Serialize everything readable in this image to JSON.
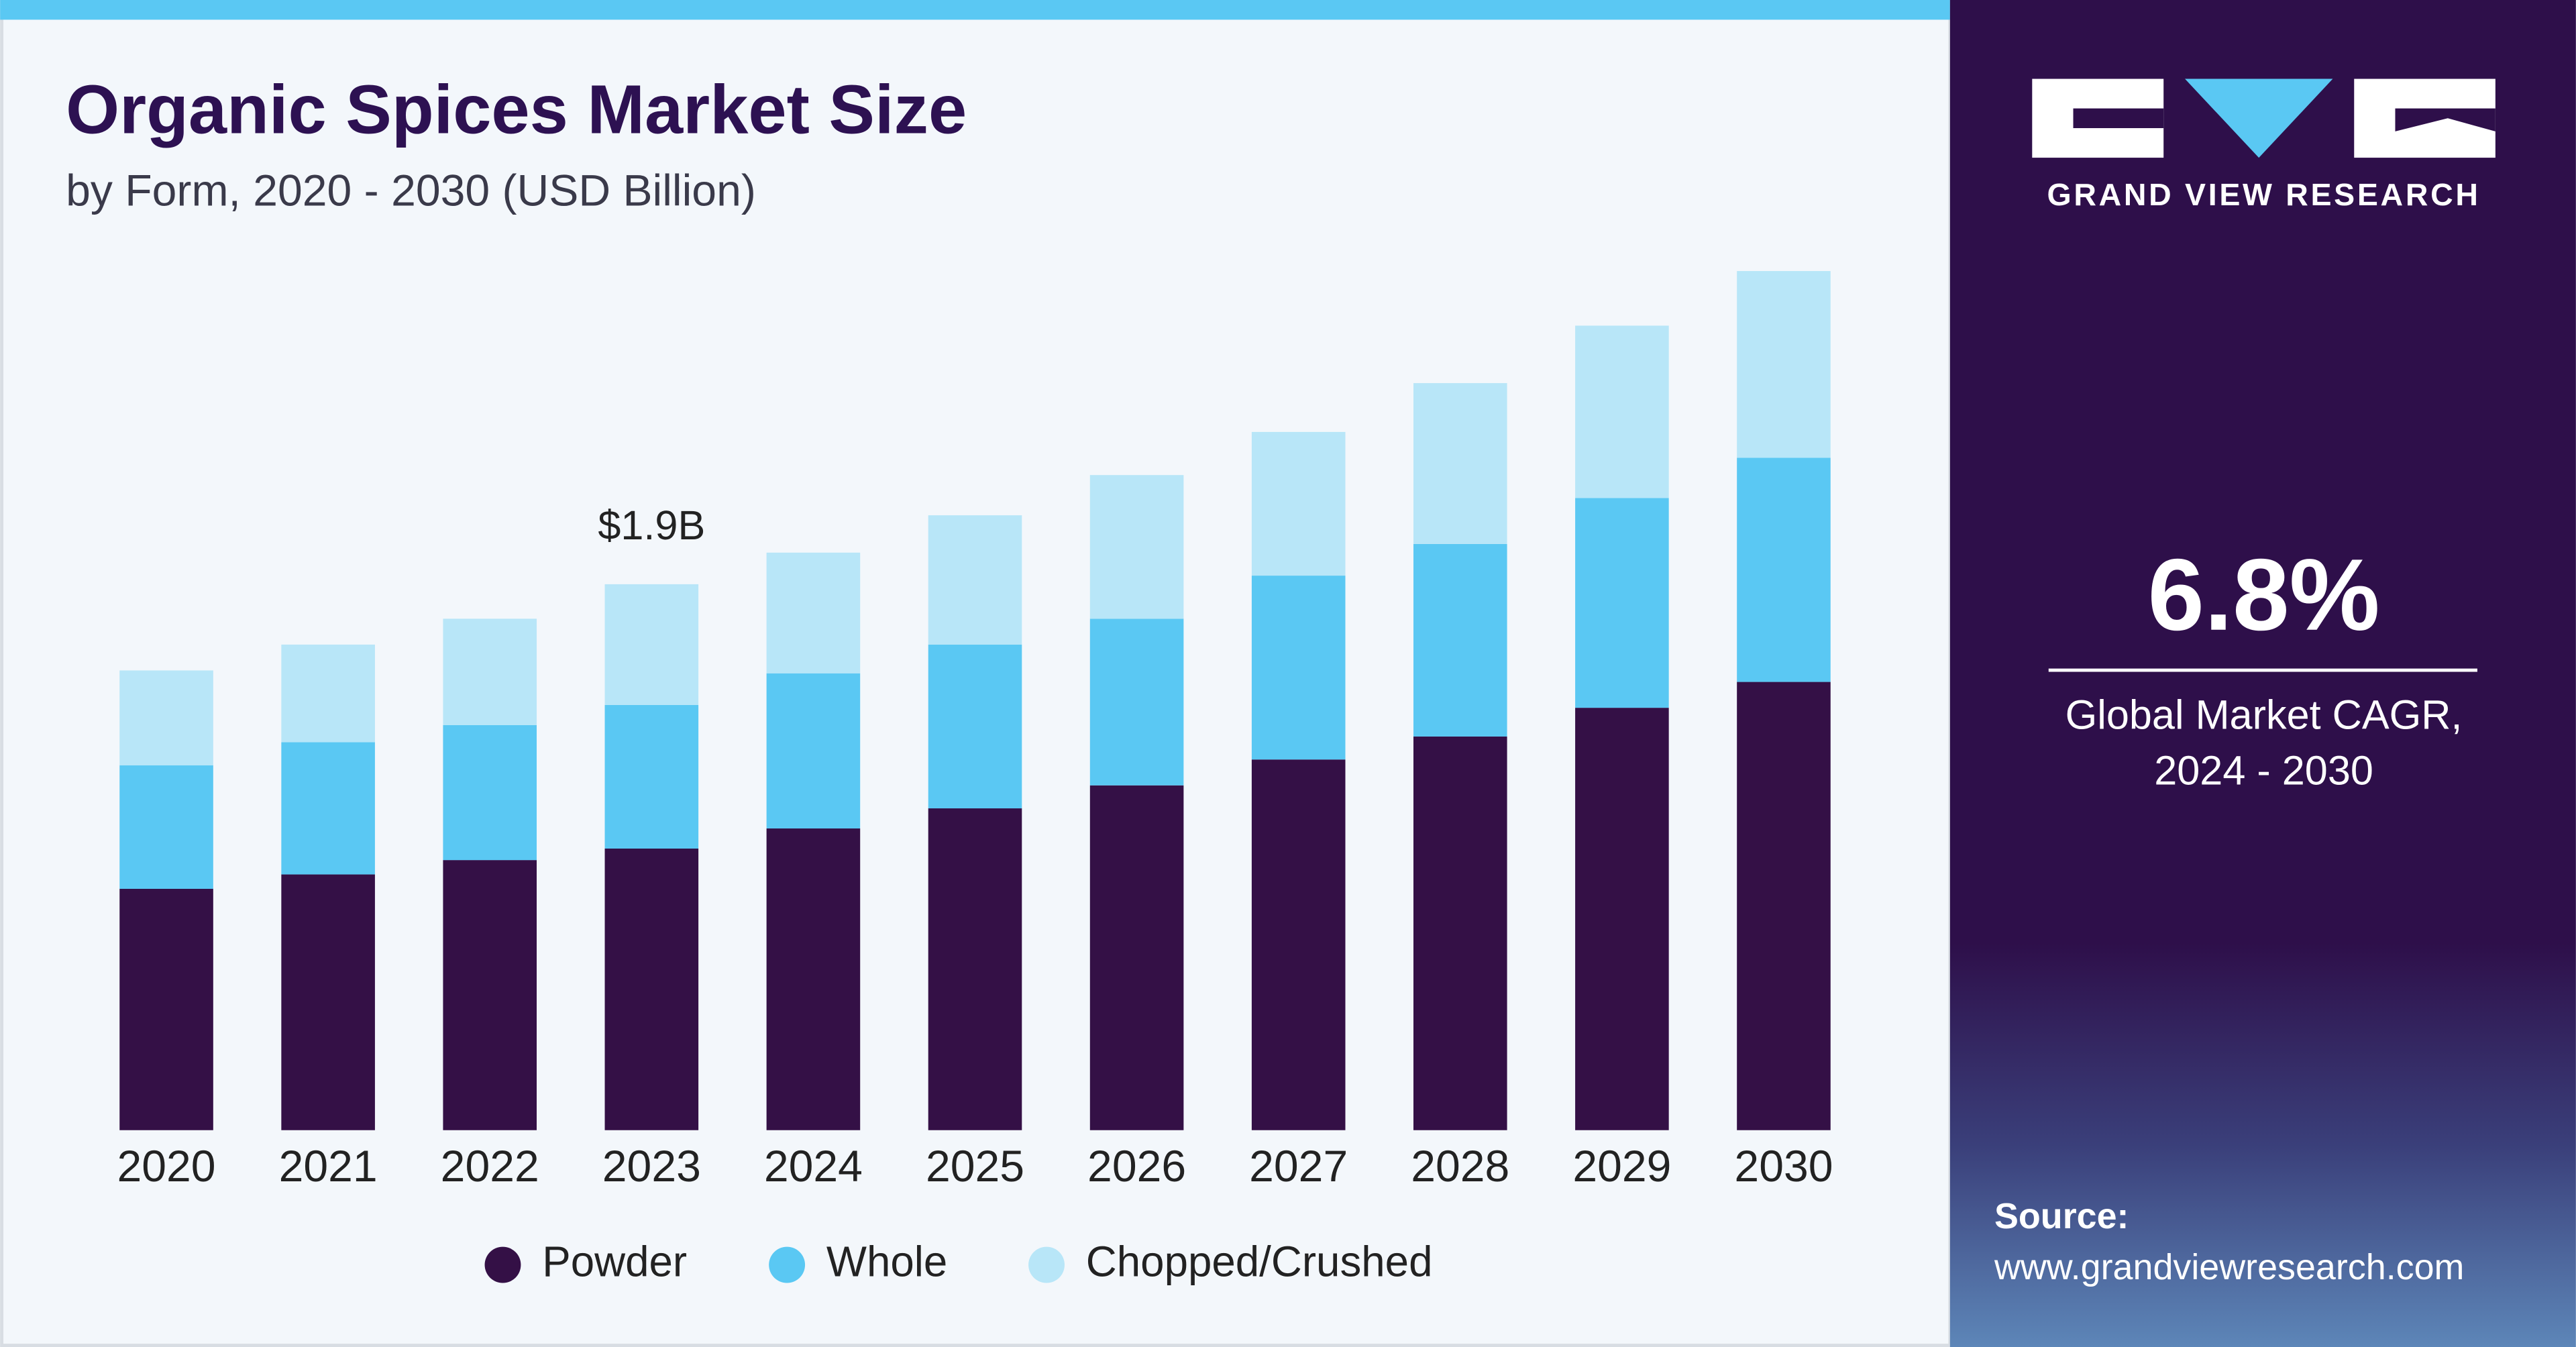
{
  "chart_data": {
    "type": "stacked_bar",
    "title": "Organic Spices Market Size",
    "subtitle": "by Form, 2020 - 2030 (USD Billion)",
    "categories": [
      "2020",
      "2021",
      "2022",
      "2023",
      "2024",
      "2025",
      "2026",
      "2027",
      "2028",
      "2029",
      "2030"
    ],
    "series": [
      {
        "name": "Powder",
        "color": "#341046",
        "values": [
          0.84,
          0.89,
          0.94,
          0.98,
          1.05,
          1.12,
          1.2,
          1.29,
          1.37,
          1.47,
          1.56
        ]
      },
      {
        "name": "Whole",
        "color": "#5ac8f3",
        "values": [
          0.43,
          0.46,
          0.47,
          0.5,
          0.54,
          0.57,
          0.58,
          0.64,
          0.67,
          0.73,
          0.78
        ]
      },
      {
        "name": "Chopped/Crushed",
        "color": "#b8e6f8",
        "values": [
          0.33,
          0.34,
          0.37,
          0.42,
          0.42,
          0.45,
          0.5,
          0.5,
          0.56,
          0.6,
          0.65
        ]
      }
    ],
    "annotations": [
      {
        "label": "$1.9B",
        "value": 1.9,
        "category": "2023"
      }
    ],
    "legend": "bottom"
  },
  "side_panel": {
    "brand": "GRAND VIEW RESEARCH",
    "cagr": "6.8%",
    "cagr_label_line1": "Global Market CAGR,",
    "cagr_label_line2": "2024 - 2030",
    "source_label": "Source:",
    "source_url": "www.grandviewresearch.com"
  }
}
